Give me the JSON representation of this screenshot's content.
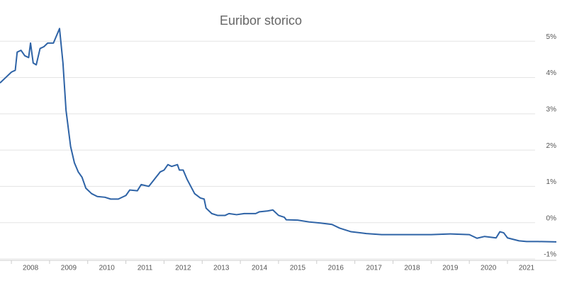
{
  "chart_data": {
    "type": "line",
    "title": "Euribor storico",
    "x": [
      2007.2,
      2007.35,
      2007.5,
      2007.6,
      2007.65,
      2007.75,
      2007.85,
      2007.95,
      2008.0,
      2008.07,
      2008.15,
      2008.25,
      2008.35,
      2008.45,
      2008.6,
      2008.76,
      2008.85,
      2008.93,
      2009.05,
      2009.15,
      2009.25,
      2009.35,
      2009.45,
      2009.6,
      2009.75,
      2009.95,
      2010.1,
      2010.3,
      2010.5,
      2010.6,
      2010.8,
      2010.9,
      2011.1,
      2011.25,
      2011.4,
      2011.5,
      2011.6,
      2011.7,
      2011.85,
      2011.9,
      2012.0,
      2012.1,
      2012.2,
      2012.3,
      2012.45,
      2012.55,
      2012.6,
      2012.75,
      2012.9,
      2013.1,
      2013.2,
      2013.4,
      2013.6,
      2013.9,
      2014.0,
      2014.2,
      2014.35,
      2014.5,
      2014.65,
      2014.7,
      2015.0,
      2015.3,
      2015.6,
      2015.9,
      2016.1,
      2016.4,
      2016.8,
      2017.2,
      2018.0,
      2018.5,
      2019.0,
      2019.5,
      2019.7,
      2019.9,
      2020.2,
      2020.3,
      2020.4,
      2020.5,
      2020.8,
      2021.0,
      2021.3,
      2021.78
    ],
    "values": [
      3.85,
      4.0,
      4.15,
      4.2,
      4.7,
      4.75,
      4.6,
      4.55,
      4.95,
      4.4,
      4.35,
      4.8,
      4.85,
      4.95,
      4.95,
      5.35,
      4.4,
      3.1,
      2.1,
      1.65,
      1.4,
      1.25,
      0.95,
      0.8,
      0.72,
      0.7,
      0.65,
      0.65,
      0.75,
      0.9,
      0.88,
      1.05,
      1.0,
      1.2,
      1.4,
      1.45,
      1.6,
      1.55,
      1.6,
      1.45,
      1.45,
      1.2,
      1.0,
      0.8,
      0.68,
      0.65,
      0.4,
      0.25,
      0.2,
      0.2,
      0.25,
      0.22,
      0.25,
      0.25,
      0.3,
      0.32,
      0.35,
      0.2,
      0.15,
      0.08,
      0.07,
      0.02,
      -0.01,
      -0.05,
      -0.15,
      -0.25,
      -0.3,
      -0.33,
      -0.33,
      -0.33,
      -0.31,
      -0.33,
      -0.43,
      -0.38,
      -0.42,
      -0.25,
      -0.28,
      -0.42,
      -0.5,
      -0.52,
      -0.52,
      -0.53
    ],
    "color": "#2e63a6",
    "xlim": [
      2007.2,
      2021.78
    ],
    "xticks": [
      2008,
      2009,
      2010,
      2011,
      2012,
      2013,
      2014,
      2015,
      2016,
      2017,
      2018,
      2019,
      2020,
      2021
    ],
    "ylim": [
      -1,
      6
    ],
    "yticks": [
      {
        "value": -1,
        "label": "-1%"
      },
      {
        "value": 0,
        "label": "0%"
      },
      {
        "value": 1,
        "label": "1%"
      },
      {
        "value": 2,
        "label": "2%"
      },
      {
        "value": 3,
        "label": "3%"
      },
      {
        "value": 4,
        "label": "4%"
      },
      {
        "value": 5,
        "label": "5%"
      }
    ],
    "grid": true
  }
}
